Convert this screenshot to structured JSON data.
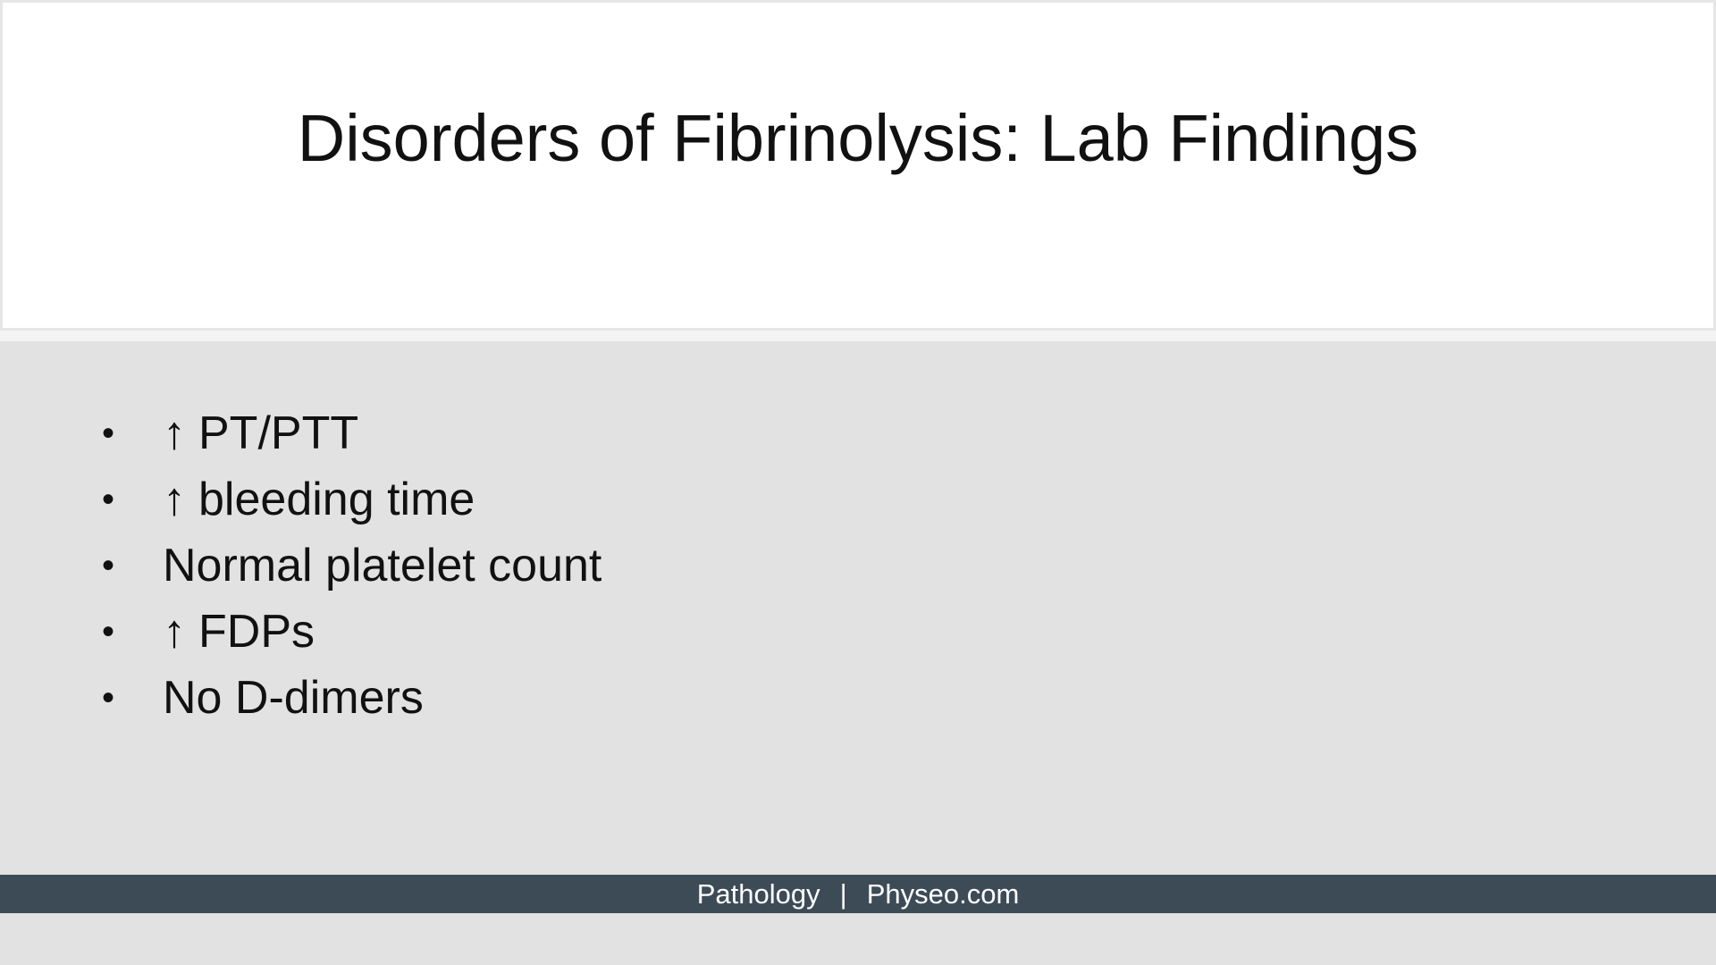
{
  "slide": {
    "title": "Disorders of Fibrinolysis: Lab Findings",
    "bullets": [
      {
        "arrow": "↑",
        "text": "PT/PTT"
      },
      {
        "arrow": "↑",
        "text": "bleeding time"
      },
      {
        "arrow": "",
        "text": "Normal platelet count"
      },
      {
        "arrow": "↑",
        "text": "FDPs"
      },
      {
        "arrow": "",
        "text": "No D-dimers"
      }
    ],
    "bullet_glyph": "•"
  },
  "footer": {
    "left": "Pathology",
    "separator": "|",
    "right": "Physeo.com"
  },
  "colors": {
    "background": "#e2e2e2",
    "title_box": "#ffffff",
    "footer_bar": "#3d4b57"
  }
}
